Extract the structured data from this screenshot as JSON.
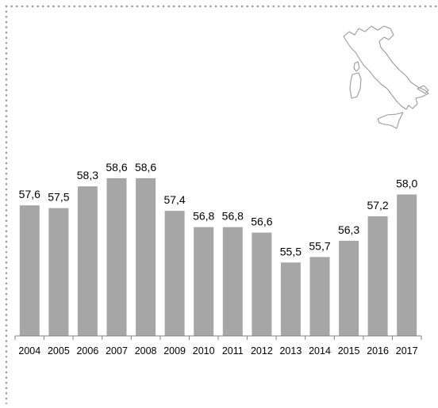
{
  "colors": {
    "bar": "#a6a6a6",
    "text": "#000000",
    "axis": "#808080",
    "border_dots": "#9a9a9a",
    "map_outline": "#9a9a9a"
  },
  "icons": {
    "decoration": "italy-map-icon"
  },
  "chart_data": {
    "type": "bar",
    "title": "",
    "xlabel": "",
    "ylabel": "",
    "categories": [
      "2004",
      "2005",
      "2006",
      "2007",
      "2008",
      "2009",
      "2010",
      "2011",
      "2012",
      "2013",
      "2014",
      "2015",
      "2016",
      "2017"
    ],
    "values": [
      57.6,
      57.5,
      58.3,
      58.6,
      58.6,
      57.4,
      56.8,
      56.8,
      56.6,
      55.5,
      55.7,
      56.3,
      57.2,
      58.0
    ],
    "value_labels": [
      "57,6",
      "57,5",
      "58,3",
      "58,6",
      "58,6",
      "57,4",
      "56,8",
      "56,8",
      "56,6",
      "55,5",
      "55,7",
      "56,3",
      "57,2",
      "58,0"
    ],
    "ylim": [
      52.8,
      59.5
    ],
    "grid": false,
    "legend": "none"
  }
}
